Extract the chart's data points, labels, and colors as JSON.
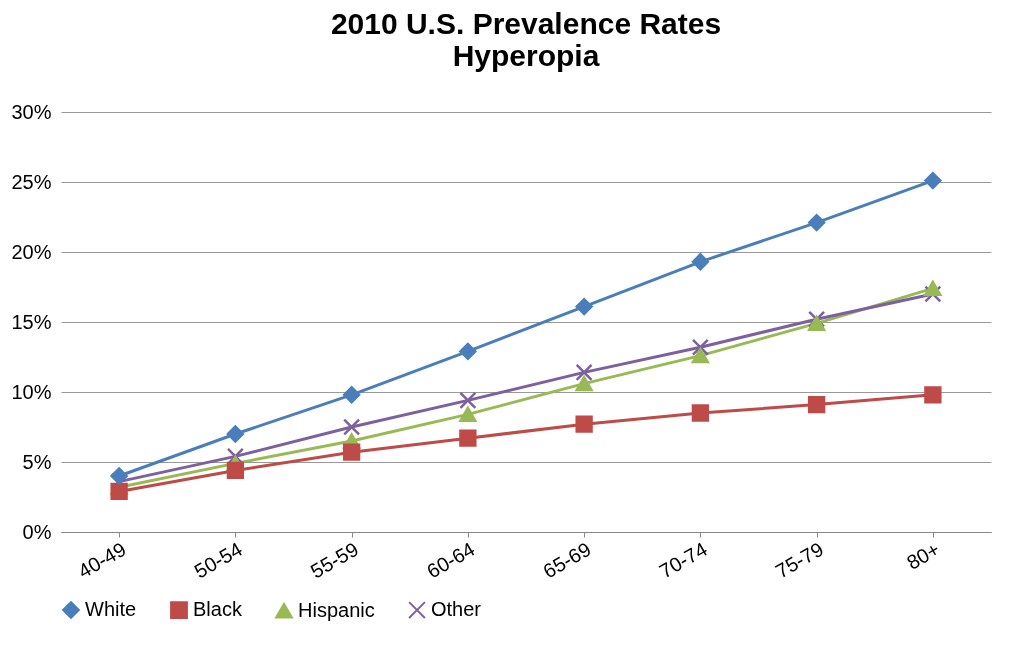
{
  "chart_data": {
    "type": "line",
    "title": [
      "2010 U.S. Prevalence Rates",
      "Hyperopia"
    ],
    "categories": [
      "40-49",
      "50-54",
      "55-59",
      "60-64",
      "65-69",
      "70-74",
      "75-79",
      "80+"
    ],
    "series": [
      {
        "name": "White",
        "color": "#4a7ebb",
        "marker": "diamond",
        "values": [
          4.0,
          7.0,
          9.8,
          12.9,
          16.1,
          19.3,
          22.1,
          25.1
        ]
      },
      {
        "name": "Black",
        "color": "#be4b48",
        "marker": "square",
        "values": [
          2.9,
          4.4,
          5.7,
          6.7,
          7.7,
          8.5,
          9.1,
          9.8
        ]
      },
      {
        "name": "Hispanic",
        "color": "#98b954",
        "marker": "triangle",
        "values": [
          3.2,
          4.9,
          6.5,
          8.4,
          10.6,
          12.6,
          14.9,
          17.4
        ]
      },
      {
        "name": "Other",
        "color": "#7d60a0",
        "marker": "cross",
        "values": [
          3.6,
          5.4,
          7.5,
          9.4,
          11.4,
          13.2,
          15.2,
          17.0
        ]
      }
    ],
    "ylim": [
      0,
      30
    ],
    "yticks": [
      {
        "value": 0,
        "label": "0%"
      },
      {
        "value": 5,
        "label": "5%"
      },
      {
        "value": 10,
        "label": "10%"
      },
      {
        "value": 15,
        "label": "15%"
      },
      {
        "value": 20,
        "label": "20%"
      },
      {
        "value": 25,
        "label": "25%"
      },
      {
        "value": 30,
        "label": "30%"
      }
    ],
    "grid": "y",
    "legend": "bottom",
    "line_style": "solid"
  }
}
